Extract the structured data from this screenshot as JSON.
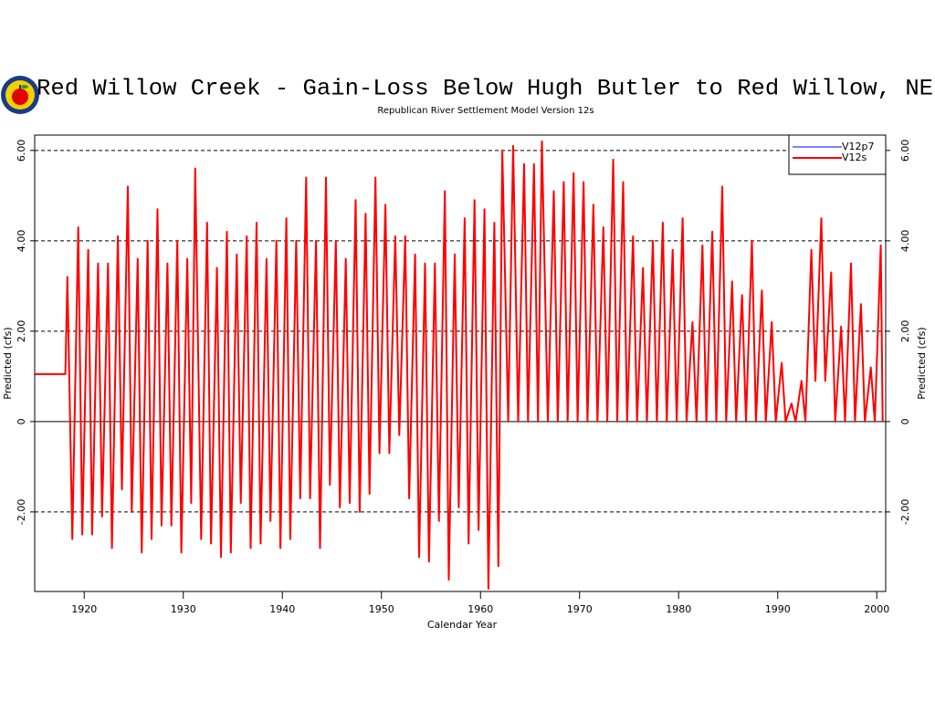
{
  "chart_data": {
    "type": "line",
    "title": "Red Willow Creek - Gain-Loss Below Hugh Butler to Red Willow, NE",
    "subtitle": "Republican River Settlement Model Version 12s",
    "x_label": "Calendar Year",
    "y_label": "Predicted (cfs)",
    "y2_label": "Predicted (cfs)",
    "xlim": [
      1915,
      2000.9
    ],
    "xticks": [
      1920,
      1930,
      1940,
      1950,
      1960,
      1970,
      1980,
      1990,
      2000
    ],
    "ylim": [
      -3.76,
      6.34
    ],
    "yticks": [
      {
        "value": -2,
        "label": "-2.00"
      },
      0,
      {
        "value": 2,
        "label": "2.00"
      },
      {
        "value": 4,
        "label": "4.00"
      },
      {
        "value": 6,
        "label": "6.00"
      }
    ],
    "grid": true,
    "legend": "upper right",
    "x": [
      1915,
      1918.1,
      1918.3,
      1918.8,
      1919.4,
      1919.8,
      1920.4,
      1920.8,
      1921.4,
      1921.8,
      1922.4,
      1922.8,
      1923.4,
      1923.8,
      1924.4,
      1924.8,
      1925.4,
      1925.8,
      1926.4,
      1926.8,
      1927.4,
      1927.8,
      1928.4,
      1928.8,
      1929.4,
      1929.8,
      1930.4,
      1930.8,
      1931.2,
      1931.8,
      1932.4,
      1932.8,
      1933.4,
      1933.8,
      1934.4,
      1934.8,
      1935.4,
      1935.8,
      1936.4,
      1936.8,
      1937.4,
      1937.8,
      1938.4,
      1938.8,
      1939.4,
      1939.8,
      1940.4,
      1940.8,
      1941.4,
      1941.8,
      1942.4,
      1942.8,
      1943.4,
      1943.8,
      1944.4,
      1944.8,
      1945.4,
      1945.8,
      1946.4,
      1946.8,
      1947.4,
      1947.8,
      1948.4,
      1948.8,
      1949.4,
      1949.8,
      1950.4,
      1950.8,
      1951.4,
      1951.8,
      1952.4,
      1952.8,
      1953.4,
      1953.8,
      1954.4,
      1954.8,
      1955.4,
      1955.8,
      1956.4,
      1956.8,
      1957.4,
      1957.8,
      1958.4,
      1958.8,
      1959.4,
      1959.8,
      1960.4,
      1960.8,
      1961.4,
      1961.8,
      1962.2,
      1962.8,
      1963.3,
      1963.8,
      1964.4,
      1964.8,
      1965.4,
      1965.8,
      1966.2,
      1966.8,
      1967.4,
      1967.8,
      1968.4,
      1968.8,
      1969.4,
      1969.8,
      1970.4,
      1970.8,
      1971.4,
      1971.8,
      1972.4,
      1972.8,
      1973.4,
      1973.8,
      1974.4,
      1974.8,
      1975.4,
      1975.8,
      1976.4,
      1976.8,
      1977.4,
      1977.8,
      1978.4,
      1978.8,
      1979.4,
      1979.8,
      1980.4,
      1980.8,
      1981.4,
      1981.8,
      1982.4,
      1982.8,
      1983.4,
      1983.8,
      1984.4,
      1984.8,
      1985.4,
      1985.8,
      1986.4,
      1986.8,
      1987.4,
      1987.8,
      1988.4,
      1988.8,
      1989.4,
      1989.8,
      1990.4,
      1990.8,
      1991.4,
      1991.8,
      1992.4,
      1992.8,
      1993.4,
      1993.8,
      1994.4,
      1994.8,
      1995.4,
      1995.8,
      1996.4,
      1996.8,
      1997.4,
      1997.8,
      1998.4,
      1998.8,
      1999.4,
      1999.8,
      2000.4,
      2000.6
    ],
    "series": [
      {
        "name": "V12p7",
        "color": "#0000ff",
        "values": [
          1.05,
          1.05,
          3.2,
          -2.6,
          4.3,
          -2.5,
          3.8,
          -2.5,
          3.5,
          -2.1,
          3.5,
          -2.8,
          4.1,
          -1.5,
          5.2,
          -2.0,
          3.6,
          -2.9,
          4.0,
          -2.6,
          4.7,
          -2.3,
          3.5,
          -2.3,
          4.0,
          -2.9,
          3.6,
          -1.8,
          5.6,
          -2.6,
          4.4,
          -2.7,
          3.4,
          -3.0,
          4.2,
          -2.9,
          3.7,
          -1.8,
          4.1,
          -2.8,
          4.4,
          -2.7,
          3.6,
          -2.2,
          4.0,
          -2.8,
          4.5,
          -2.6,
          4.0,
          -1.7,
          5.4,
          -1.7,
          4.0,
          -2.8,
          5.4,
          -1.4,
          4.0,
          -1.9,
          3.6,
          -1.8,
          4.9,
          -2.0,
          4.6,
          -1.6,
          5.4,
          -0.7,
          4.8,
          -0.7,
          4.1,
          -0.3,
          4.1,
          -1.7,
          3.7,
          -3.0,
          3.5,
          -3.1,
          3.5,
          -2.2,
          5.1,
          -3.5,
          3.7,
          -1.9,
          4.5,
          -2.7,
          4.9,
          -2.4,
          4.7,
          -3.7,
          4.4,
          -3.2,
          6.0,
          0,
          6.1,
          0,
          5.7,
          0,
          5.7,
          0,
          6.2,
          0,
          5.1,
          0,
          5.3,
          0,
          5.5,
          0,
          5.3,
          0,
          4.8,
          0,
          4.3,
          0,
          5.8,
          0,
          5.3,
          0,
          4.1,
          0,
          3.4,
          0,
          4.0,
          0,
          4.4,
          0,
          3.8,
          0,
          4.5,
          0,
          2.2,
          0,
          3.9,
          0,
          4.2,
          0,
          5.2,
          0,
          3.1,
          0,
          2.8,
          0,
          4.0,
          0,
          2.9,
          0,
          2.2,
          0,
          1.3,
          0,
          0.4,
          0,
          0.9,
          0,
          3.8,
          0.9,
          4.5,
          0.9,
          3.3,
          0,
          2.1,
          0,
          3.5,
          0,
          2.6,
          0,
          1.2,
          0,
          3.9,
          0
        ]
      },
      {
        "name": "V12s",
        "color": "#ff0000",
        "values": [
          1.05,
          1.05,
          3.2,
          -2.6,
          4.3,
          -2.5,
          3.8,
          -2.5,
          3.5,
          -2.1,
          3.5,
          -2.8,
          4.1,
          -1.5,
          5.2,
          -2.0,
          3.6,
          -2.9,
          4.0,
          -2.6,
          4.7,
          -2.3,
          3.5,
          -2.3,
          4.0,
          -2.9,
          3.6,
          -1.8,
          5.6,
          -2.6,
          4.4,
          -2.7,
          3.4,
          -3.0,
          4.2,
          -2.9,
          3.7,
          -1.8,
          4.1,
          -2.8,
          4.4,
          -2.7,
          3.6,
          -2.2,
          4.0,
          -2.8,
          4.5,
          -2.6,
          4.0,
          -1.7,
          5.4,
          -1.7,
          4.0,
          -2.8,
          5.4,
          -1.4,
          4.0,
          -1.9,
          3.6,
          -1.8,
          4.9,
          -2.0,
          4.6,
          -1.6,
          5.4,
          -0.7,
          4.8,
          -0.7,
          4.1,
          -0.3,
          4.1,
          -1.7,
          3.7,
          -3.0,
          3.5,
          -3.1,
          3.5,
          -2.2,
          5.1,
          -3.5,
          3.7,
          -1.9,
          4.5,
          -2.7,
          4.9,
          -2.4,
          4.7,
          -3.7,
          4.4,
          -3.2,
          6.0,
          0,
          6.1,
          0,
          5.7,
          0,
          5.7,
          0,
          6.2,
          0,
          5.1,
          0,
          5.3,
          0,
          5.5,
          0,
          5.3,
          0,
          4.8,
          0,
          4.3,
          0,
          5.8,
          0,
          5.3,
          0,
          4.1,
          0,
          3.4,
          0,
          4.0,
          0,
          4.4,
          0,
          3.8,
          0,
          4.5,
          0,
          2.2,
          0,
          3.9,
          0,
          4.2,
          0,
          5.2,
          0,
          3.1,
          0,
          2.8,
          0,
          4.0,
          0,
          2.9,
          0,
          2.2,
          0,
          1.3,
          0,
          0.4,
          0,
          0.9,
          0,
          3.8,
          0.9,
          4.5,
          0.9,
          3.3,
          0,
          2.1,
          0,
          3.5,
          0,
          2.6,
          0,
          1.2,
          0,
          3.9,
          0
        ]
      }
    ]
  }
}
